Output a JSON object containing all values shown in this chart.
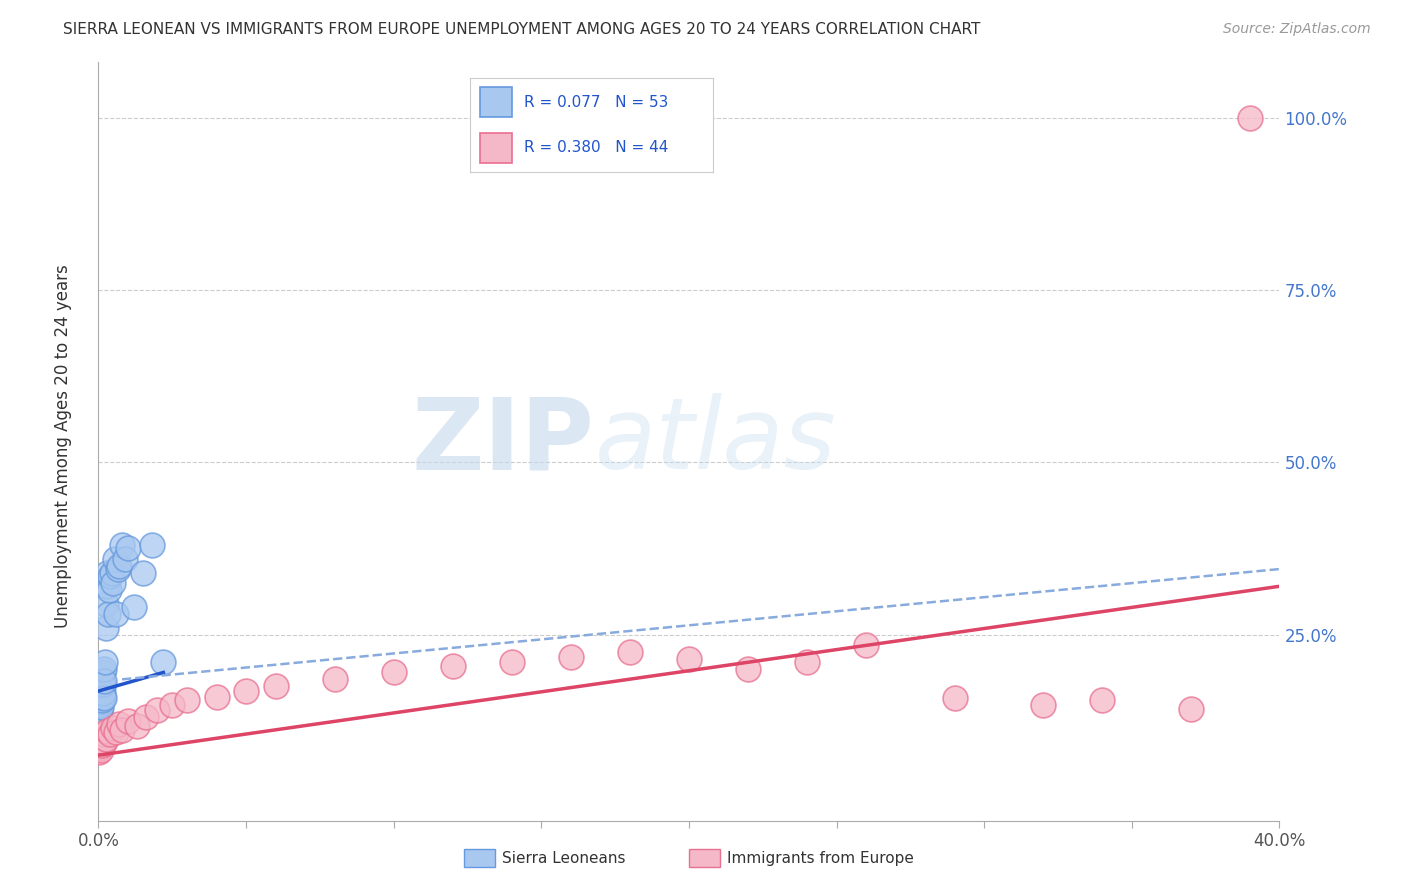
{
  "title": "SIERRA LEONEAN VS IMMIGRANTS FROM EUROPE UNEMPLOYMENT AMONG AGES 20 TO 24 YEARS CORRELATION CHART",
  "source": "Source: ZipAtlas.com",
  "ylabel": "Unemployment Among Ages 20 to 24 years",
  "xmin": 0.0,
  "xmax": 0.4,
  "ymin": -0.02,
  "ymax": 1.08,
  "blue_color": "#A8C8F0",
  "blue_edge": "#6699DD",
  "pink_color": "#F5B8C8",
  "pink_edge": "#E87090",
  "trend_blue": "#2255CC",
  "trend_blue_dash": "#88AADD",
  "trend_pink": "#DD4466",
  "grid_color": "#CCCCCC",
  "background": "#FFFFFF",
  "sierra_x": [
    0.0002,
    0.0003,
    0.0003,
    0.0004,
    0.0004,
    0.0005,
    0.0005,
    0.0005,
    0.0006,
    0.0006,
    0.0006,
    0.0007,
    0.0007,
    0.0007,
    0.0008,
    0.0008,
    0.0009,
    0.0009,
    0.001,
    0.001,
    0.001,
    0.0012,
    0.0012,
    0.0013,
    0.0014,
    0.0015,
    0.0015,
    0.0016,
    0.0017,
    0.0018,
    0.002,
    0.002,
    0.0022,
    0.0024,
    0.0025,
    0.003,
    0.003,
    0.0032,
    0.0035,
    0.004,
    0.0045,
    0.005,
    0.0055,
    0.006,
    0.0065,
    0.007,
    0.008,
    0.009,
    0.01,
    0.012,
    0.015,
    0.018,
    0.022
  ],
  "sierra_y": [
    0.155,
    0.148,
    0.165,
    0.14,
    0.158,
    0.145,
    0.162,
    0.172,
    0.138,
    0.155,
    0.17,
    0.148,
    0.16,
    0.178,
    0.152,
    0.168,
    0.158,
    0.175,
    0.145,
    0.162,
    0.18,
    0.155,
    0.17,
    0.185,
    0.16,
    0.175,
    0.195,
    0.165,
    0.178,
    0.2,
    0.158,
    0.182,
    0.21,
    0.295,
    0.26,
    0.32,
    0.34,
    0.28,
    0.315,
    0.335,
    0.34,
    0.325,
    0.36,
    0.28,
    0.345,
    0.35,
    0.38,
    0.36,
    0.375,
    0.29,
    0.34,
    0.38,
    0.21
  ],
  "europe_x": [
    0.0003,
    0.0004,
    0.0005,
    0.0006,
    0.0007,
    0.0008,
    0.0009,
    0.001,
    0.0012,
    0.0014,
    0.0016,
    0.0018,
    0.002,
    0.0025,
    0.003,
    0.004,
    0.005,
    0.006,
    0.007,
    0.008,
    0.01,
    0.013,
    0.016,
    0.02,
    0.025,
    0.03,
    0.04,
    0.05,
    0.06,
    0.08,
    0.1,
    0.12,
    0.14,
    0.16,
    0.18,
    0.2,
    0.22,
    0.24,
    0.26,
    0.29,
    0.32,
    0.34,
    0.37,
    0.39
  ],
  "europe_y": [
    0.08,
    0.09,
    0.085,
    0.092,
    0.088,
    0.095,
    0.082,
    0.098,
    0.09,
    0.095,
    0.1,
    0.092,
    0.105,
    0.098,
    0.11,
    0.105,
    0.115,
    0.108,
    0.12,
    0.112,
    0.125,
    0.118,
    0.13,
    0.14,
    0.148,
    0.155,
    0.16,
    0.168,
    0.175,
    0.185,
    0.195,
    0.205,
    0.21,
    0.218,
    0.225,
    0.215,
    0.2,
    0.21,
    0.235,
    0.158,
    0.148,
    0.155,
    0.142,
    1.0
  ]
}
